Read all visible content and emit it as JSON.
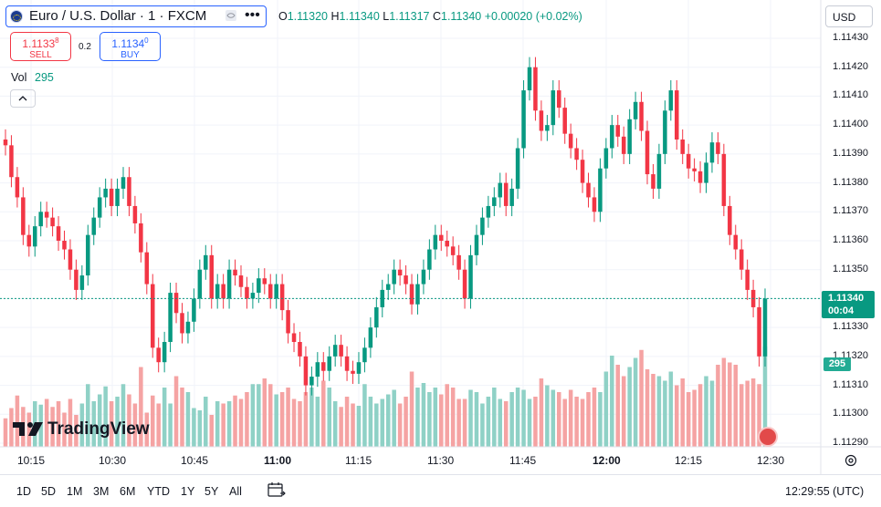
{
  "header": {
    "symbol_title": "Euro / U.S. Dollar · 1 · FXCM",
    "ohlc": {
      "o_label": "O",
      "o": "1.11320",
      "h_label": "H",
      "h": "1.11340",
      "l_label": "L",
      "l": "1.11317",
      "c_label": "C",
      "c": "1.11340",
      "change": "+0.00020 (+0.02%)"
    },
    "currency": "USD",
    "icons": [
      "globe-flag-icon",
      "eye-icon",
      "more-icon"
    ]
  },
  "trade": {
    "sell_price": "1.1133",
    "sell_sup": "8",
    "sell_label": "SELL",
    "spread": "0.2",
    "buy_price": "1.1134",
    "buy_sup": "0",
    "buy_label": "BUY"
  },
  "volume_legend": {
    "label": "Vol",
    "value": "295"
  },
  "price_axis": {
    "ticks": [
      "1.11430",
      "1.11420",
      "1.11410",
      "1.11400",
      "1.11390",
      "1.11380",
      "1.11370",
      "1.11360",
      "1.11350",
      "1.11340",
      "1.11330",
      "1.11320",
      "1.11310",
      "1.11300",
      "1.11290"
    ],
    "last_price": "1.11340",
    "countdown": "00:04",
    "volume_tag": "295"
  },
  "time_axis": [
    "10:15",
    "10:30",
    "10:45",
    "11:00",
    "11:15",
    "11:30",
    "11:45",
    "12:00",
    "12:15",
    "12:30"
  ],
  "logo_text": "TradingView",
  "bottom_bar": {
    "ranges": [
      "1D",
      "5D",
      "1M",
      "3M",
      "6M",
      "YTD",
      "1Y",
      "5Y",
      "All"
    ],
    "time": "12:29:55 (UTC)"
  },
  "colors": {
    "up": "#089981",
    "down": "#f23645",
    "vol_up": "#8fd1c6",
    "vol_down": "#f5a3a3",
    "accent": "#2962ff"
  },
  "chart_data": {
    "type": "candlestick",
    "ylim": [
      1.11285,
      1.11437
    ],
    "open": [
      1.11395,
      1.11393,
      1.11382,
      1.11375,
      1.11362,
      1.11358,
      1.11365,
      1.1137,
      1.11368,
      1.11365,
      1.1136,
      1.11357,
      1.1135,
      1.11343,
      1.11348,
      1.11362,
      1.11368,
      1.11375,
      1.11378,
      1.11372,
      1.11378,
      1.11382,
      1.11372,
      1.11366,
      1.11356,
      1.11345,
      1.11323,
      1.11318,
      1.11325,
      1.11342,
      1.11335,
      1.11328,
      1.11332,
      1.1134,
      1.1135,
      1.11355,
      1.1134,
      1.11345,
      1.1134,
      1.1135,
      1.11348,
      1.11344,
      1.1134,
      1.11342,
      1.11347,
      1.11345,
      1.1134,
      1.11345,
      1.11336,
      1.11328,
      1.11325,
      1.1132,
      1.1131,
      1.11313,
      1.11318,
      1.11315,
      1.1132,
      1.11324,
      1.1132,
      1.11315,
      1.11314,
      1.11318,
      1.11323,
      1.1133,
      1.11337,
      1.11343,
      1.11345,
      1.1135,
      1.11348,
      1.11345,
      1.11338,
      1.11345,
      1.1135,
      1.11357,
      1.11362,
      1.1136,
      1.11358,
      1.11355,
      1.1135,
      1.1134,
      1.11355,
      1.11362,
      1.11368,
      1.11372,
      1.11375,
      1.1138,
      1.11372,
      1.11378,
      1.11392,
      1.11412,
      1.1142,
      1.11405,
      1.11398,
      1.114,
      1.11412,
      1.11406,
      1.11397,
      1.11392,
      1.11388,
      1.1138,
      1.11375,
      1.1137,
      1.11385,
      1.11392,
      1.114,
      1.11396,
      1.1139,
      1.11402,
      1.11408,
      1.11398,
      1.11383,
      1.11378,
      1.1139,
      1.11405,
      1.11412,
      1.11395,
      1.1139,
      1.11385,
      1.11384,
      1.1138,
      1.11387,
      1.11394,
      1.1139,
      1.11372,
      1.11362,
      1.11357,
      1.1135,
      1.11343,
      1.11337,
      1.1132
    ],
    "close": [
      1.11393,
      1.11382,
      1.11375,
      1.11362,
      1.11358,
      1.11365,
      1.1137,
      1.11368,
      1.11365,
      1.1136,
      1.11357,
      1.1135,
      1.11343,
      1.11348,
      1.11362,
      1.11368,
      1.11375,
      1.11378,
      1.11372,
      1.11378,
      1.11382,
      1.11372,
      1.11366,
      1.11356,
      1.11345,
      1.11323,
      1.11318,
      1.11325,
      1.11342,
      1.11335,
      1.11328,
      1.11332,
      1.1134,
      1.1135,
      1.11355,
      1.1134,
      1.11345,
      1.1134,
      1.1135,
      1.11348,
      1.11344,
      1.1134,
      1.11342,
      1.11347,
      1.11345,
      1.1134,
      1.11345,
      1.11336,
      1.11328,
      1.11325,
      1.1132,
      1.1131,
      1.11313,
      1.11318,
      1.11315,
      1.1132,
      1.11324,
      1.1132,
      1.11315,
      1.11314,
      1.11318,
      1.11323,
      1.1133,
      1.11337,
      1.11343,
      1.11345,
      1.1135,
      1.11348,
      1.11345,
      1.11338,
      1.11345,
      1.1135,
      1.11357,
      1.11362,
      1.1136,
      1.11358,
      1.11355,
      1.1135,
      1.1134,
      1.11355,
      1.11362,
      1.11368,
      1.11372,
      1.11375,
      1.1138,
      1.11372,
      1.11378,
      1.11392,
      1.11412,
      1.1142,
      1.11405,
      1.11398,
      1.114,
      1.11412,
      1.11406,
      1.11397,
      1.11392,
      1.11388,
      1.1138,
      1.11375,
      1.1137,
      1.11385,
      1.11392,
      1.114,
      1.11396,
      1.1139,
      1.11402,
      1.11408,
      1.11398,
      1.11383,
      1.11378,
      1.1139,
      1.11405,
      1.11412,
      1.11395,
      1.1139,
      1.11385,
      1.11384,
      1.1138,
      1.11387,
      1.11394,
      1.1139,
      1.11372,
      1.11362,
      1.11357,
      1.1135,
      1.11343,
      1.11337,
      1.1132,
      1.1134
    ],
    "volume": [
      0.25,
      0.34,
      0.45,
      0.35,
      0.3,
      0.4,
      0.37,
      0.42,
      0.35,
      0.4,
      0.3,
      0.42,
      0.28,
      0.38,
      0.55,
      0.4,
      0.46,
      0.53,
      0.4,
      0.44,
      0.55,
      0.46,
      0.38,
      0.7,
      0.3,
      0.45,
      0.38,
      0.52,
      0.38,
      0.62,
      0.52,
      0.48,
      0.34,
      0.32,
      0.44,
      0.28,
      0.4,
      0.38,
      0.4,
      0.45,
      0.42,
      0.48,
      0.55,
      0.55,
      0.6,
      0.55,
      0.46,
      0.48,
      0.52,
      0.42,
      0.4,
      0.48,
      0.52,
      0.44,
      0.58,
      0.52,
      0.4,
      0.35,
      0.44,
      0.38,
      0.36,
      0.55,
      0.44,
      0.38,
      0.42,
      0.46,
      0.5,
      0.38,
      0.44,
      0.66,
      0.52,
      0.56,
      0.48,
      0.52,
      0.46,
      0.55,
      0.52,
      0.42,
      0.42,
      0.5,
      0.48,
      0.38,
      0.44,
      0.52,
      0.42,
      0.4,
      0.48,
      0.52,
      0.5,
      0.42,
      0.44,
      0.6,
      0.54,
      0.5,
      0.48,
      0.42,
      0.5,
      0.44,
      0.42,
      0.48,
      0.52,
      0.48,
      0.66,
      0.8,
      0.72,
      0.62,
      0.7,
      0.78,
      0.85,
      0.68,
      0.64,
      0.62,
      0.58,
      0.66,
      0.54,
      0.6,
      0.48,
      0.5,
      0.55,
      0.62,
      0.58,
      0.72,
      0.78,
      0.74,
      0.72,
      0.55,
      0.58,
      0.6,
      0.55,
      0.88
    ]
  }
}
